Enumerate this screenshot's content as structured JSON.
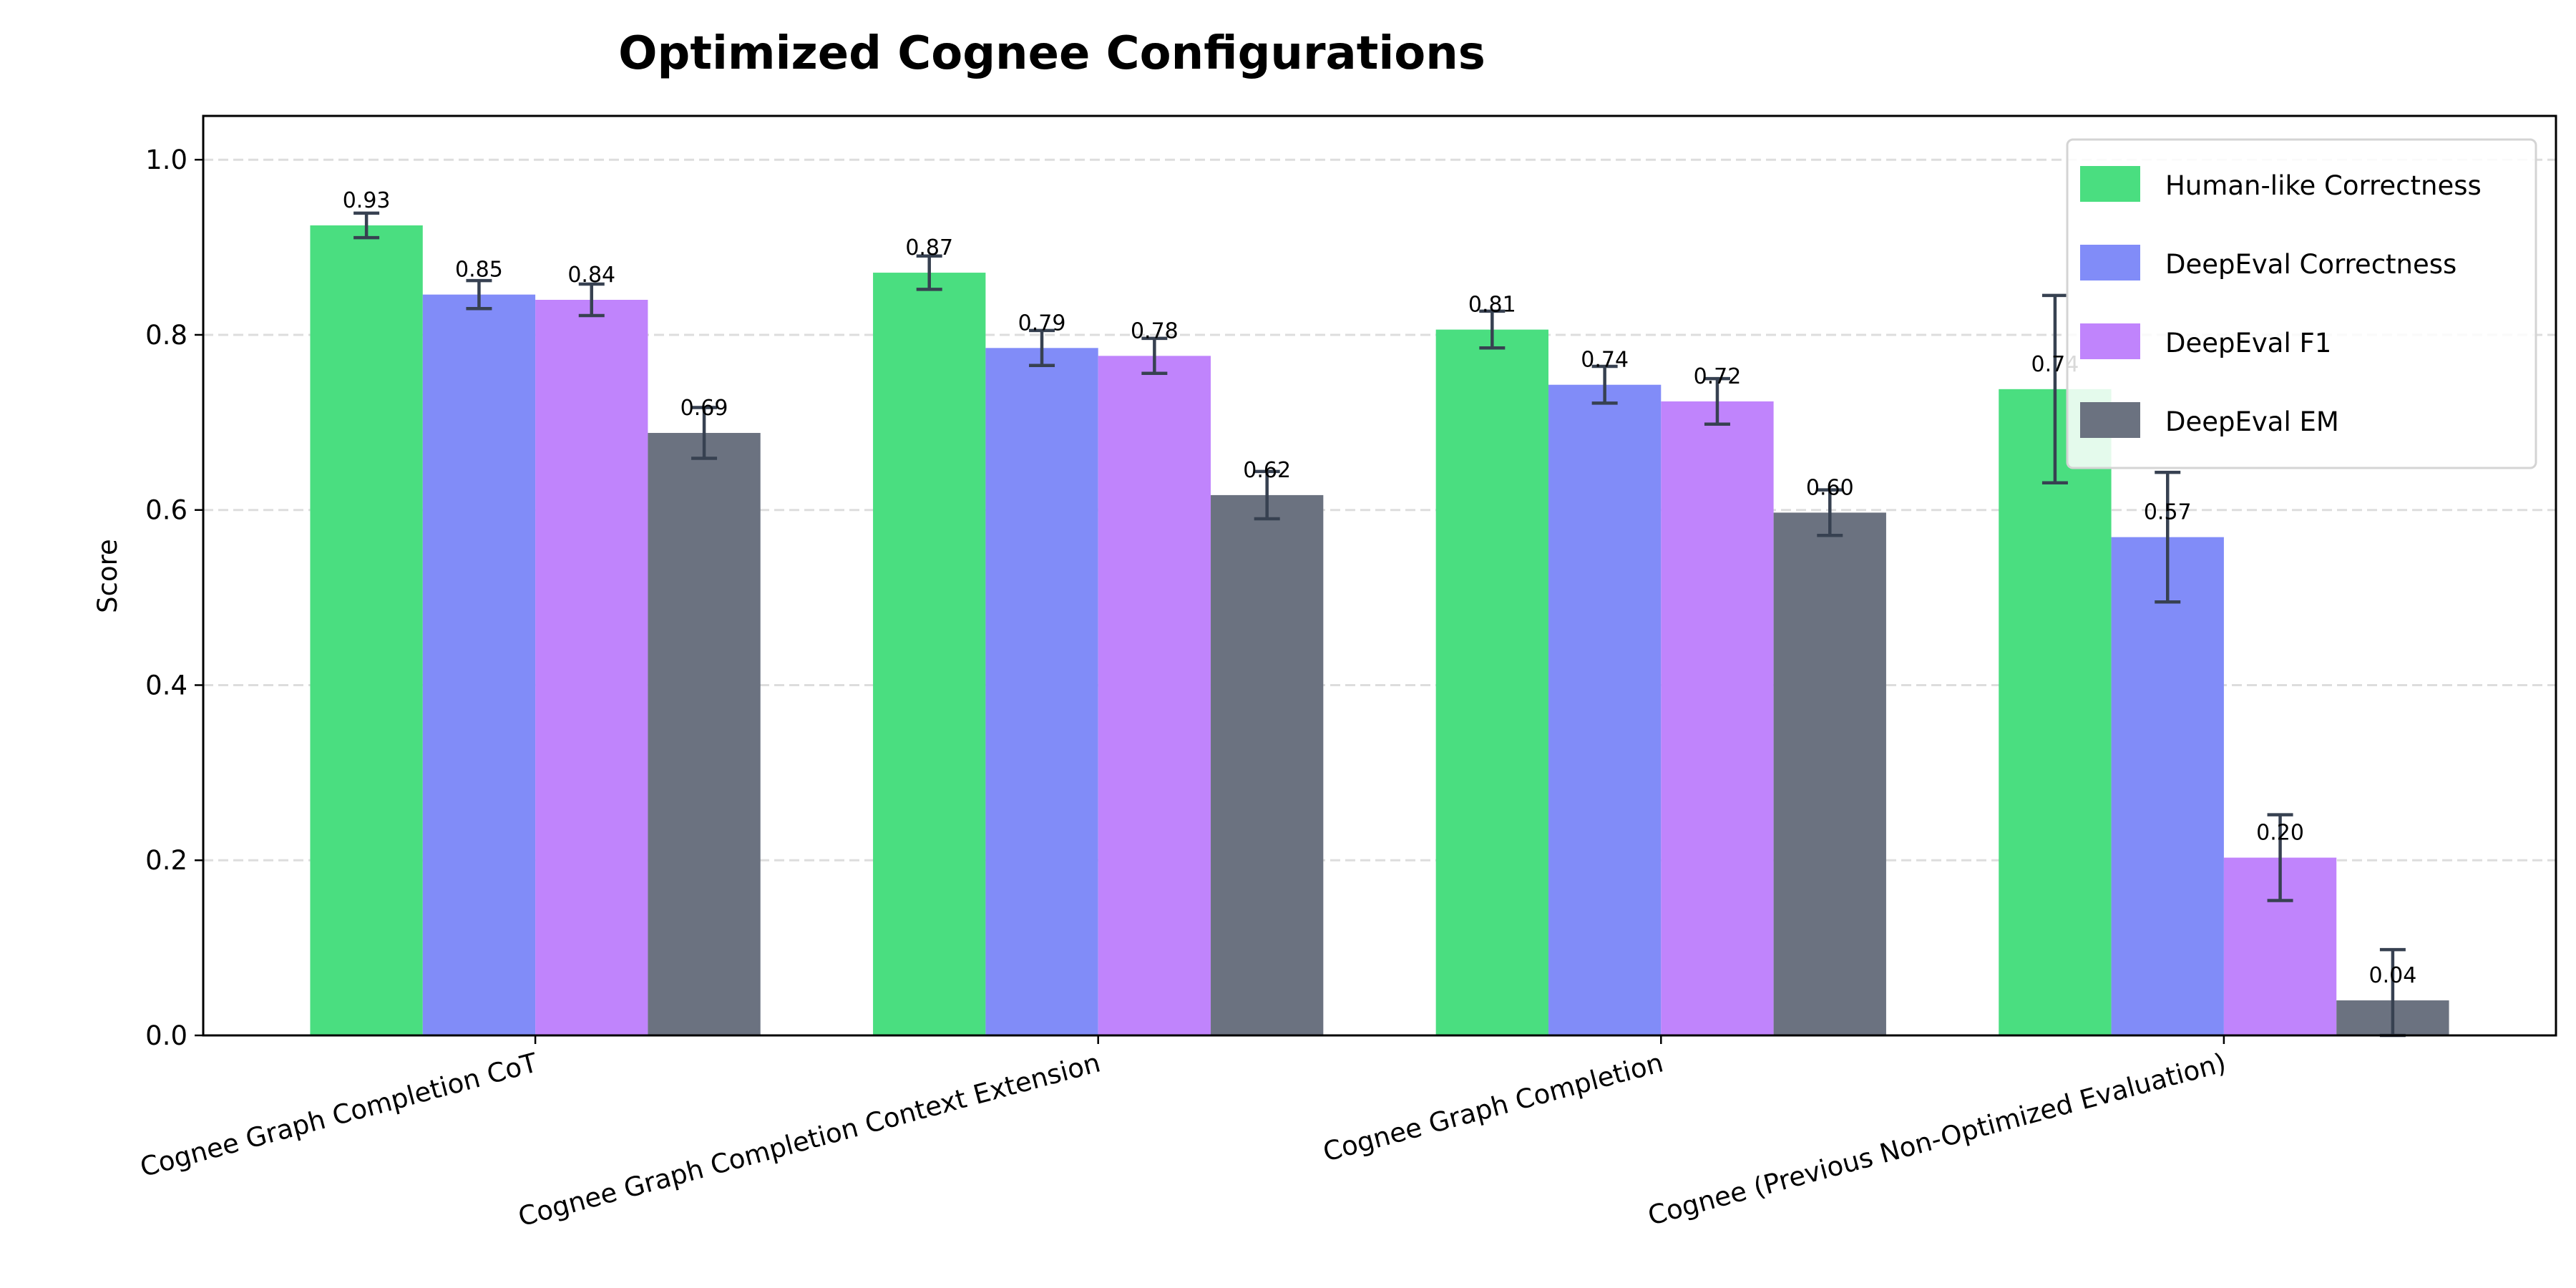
{
  "chart_data": {
    "type": "bar",
    "title": "Optimized Cognee Configurations",
    "xlabel": "",
    "ylabel": "Score",
    "ylim": [
      0,
      1.05
    ],
    "yticks": [
      0.0,
      0.2,
      0.4,
      0.6,
      0.8,
      1.0
    ],
    "ytick_labels": [
      "0.0",
      "0.2",
      "0.4",
      "0.6",
      "0.8",
      "1.0"
    ],
    "grid": "y dashed",
    "legend_position": "top-right",
    "categories": [
      "Cognee Graph Completion CoT",
      "Cognee Graph Completion Context Extension",
      "Cognee Graph Completion",
      "Cognee (Previous Non-Optimized Evaluation)"
    ],
    "series": [
      {
        "name": "Human-like Correctness",
        "color": "#4ade80",
        "values": [
          0.925,
          0.871,
          0.806,
          0.738
        ],
        "labels": [
          "0.93",
          "0.87",
          "0.81",
          "0.74"
        ],
        "errors": [
          0.014,
          0.019,
          0.021,
          0.107
        ]
      },
      {
        "name": "DeepEval Correctness",
        "color": "#818cf8",
        "values": [
          0.846,
          0.785,
          0.743,
          0.569
        ],
        "labels": [
          "0.85",
          "0.79",
          "0.74",
          "0.57"
        ],
        "errors": [
          0.016,
          0.02,
          0.021,
          0.074
        ]
      },
      {
        "name": "DeepEval F1",
        "color": "#c084fc",
        "values": [
          0.84,
          0.776,
          0.724,
          0.203
        ],
        "labels": [
          "0.84",
          "0.78",
          "0.72",
          "0.20"
        ],
        "errors": [
          0.018,
          0.02,
          0.026,
          0.049
        ]
      },
      {
        "name": "DeepEval EM",
        "color": "#6b7280",
        "values": [
          0.688,
          0.617,
          0.597,
          0.04
        ],
        "labels": [
          "0.69",
          "0.62",
          "0.60",
          "0.04"
        ],
        "errors": [
          0.029,
          0.027,
          0.026,
          0.058
        ]
      }
    ],
    "error_bar_color": "#374151"
  }
}
